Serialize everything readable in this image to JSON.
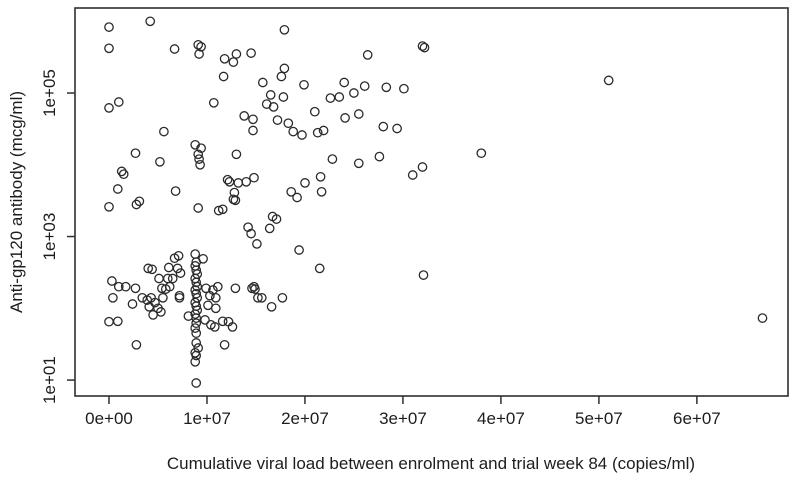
{
  "figure": {
    "background": "#ffffff",
    "text_color": "#1d1d1d",
    "box_color": "#2f2f2f"
  },
  "chart_data": {
    "type": "scatter",
    "xlabel": "Cumulative viral load between enrolment and trial week 84 (copies/ml)",
    "ylabel": "Anti-gp120 antibody (mcg/ml)",
    "x_ticks": [
      {
        "value": 0,
        "label": "0e+00"
      },
      {
        "value": 10000000,
        "label": "1e+07"
      },
      {
        "value": 20000000,
        "label": "2e+07"
      },
      {
        "value": 30000000,
        "label": "3e+07"
      },
      {
        "value": 40000000,
        "label": "4e+07"
      },
      {
        "value": 50000000,
        "label": "5e+07"
      },
      {
        "value": 60000000,
        "label": "6e+07"
      }
    ],
    "y_ticks": [
      {
        "value": 10,
        "label": "1e+01"
      },
      {
        "value": 1000,
        "label": "1e+03"
      },
      {
        "value": 100000,
        "label": "1e+05"
      }
    ],
    "xlim": [
      -3470000,
      69300000
    ],
    "ylim": [
      6,
      1530000
    ],
    "y_scale": "log10",
    "grid": false,
    "legend": null,
    "marker": {
      "shape": "open-circle",
      "color": "#2a2a2a",
      "radius": 4.2,
      "stroke_width": 1.3
    },
    "points": [
      [
        0,
        830000
      ],
      [
        4200000,
        1000000
      ],
      [
        0,
        420000
      ],
      [
        6700000,
        410000
      ],
      [
        9100000,
        470000
      ],
      [
        9400000,
        440000
      ],
      [
        9200000,
        350000
      ],
      [
        11800000,
        300000
      ],
      [
        12700000,
        270000
      ],
      [
        13000000,
        350000
      ],
      [
        14500000,
        360000
      ],
      [
        11700000,
        170000
      ],
      [
        17900000,
        760000
      ],
      [
        17900000,
        220000
      ],
      [
        17600000,
        170000
      ],
      [
        15700000,
        140000
      ],
      [
        19900000,
        130000
      ],
      [
        16500000,
        94000
      ],
      [
        16100000,
        70000
      ],
      [
        16800000,
        64000
      ],
      [
        17800000,
        88000
      ],
      [
        10700000,
        73000
      ],
      [
        0,
        62000
      ],
      [
        1000000,
        75000
      ],
      [
        13800000,
        48000
      ],
      [
        14700000,
        43000
      ],
      [
        14700000,
        30000
      ],
      [
        17200000,
        42000
      ],
      [
        18300000,
        38000
      ],
      [
        18800000,
        29000
      ],
      [
        5600000,
        29000
      ],
      [
        19700000,
        26000
      ],
      [
        21000000,
        55000
      ],
      [
        21300000,
        28000
      ],
      [
        21900000,
        30000
      ],
      [
        32000000,
        450000
      ],
      [
        32200000,
        430000
      ],
      [
        26400000,
        340000
      ],
      [
        24000000,
        140000
      ],
      [
        25000000,
        100000
      ],
      [
        26100000,
        125000
      ],
      [
        28300000,
        120000
      ],
      [
        30100000,
        115000
      ],
      [
        22600000,
        85000
      ],
      [
        23500000,
        88000
      ],
      [
        24100000,
        45000
      ],
      [
        25500000,
        51000
      ],
      [
        28000000,
        34000
      ],
      [
        29400000,
        32000
      ],
      [
        51000000,
        150000
      ],
      [
        2700000,
        14500
      ],
      [
        5200000,
        11000
      ],
      [
        8800000,
        19000
      ],
      [
        9400000,
        17000
      ],
      [
        9100000,
        14000
      ],
      [
        9200000,
        12000
      ],
      [
        9300000,
        10000
      ],
      [
        13000000,
        14000
      ],
      [
        1300000,
        8100
      ],
      [
        1500000,
        7400
      ],
      [
        900000,
        4600
      ],
      [
        6800000,
        4300
      ],
      [
        0,
        2600
      ],
      [
        2800000,
        2800
      ],
      [
        3100000,
        3100
      ],
      [
        12100000,
        6200
      ],
      [
        12300000,
        5800
      ],
      [
        13200000,
        5600
      ],
      [
        14000000,
        5800
      ],
      [
        14800000,
        6600
      ],
      [
        12800000,
        4100
      ],
      [
        12700000,
        3300
      ],
      [
        12900000,
        3200
      ],
      [
        9100000,
        2500
      ],
      [
        11200000,
        2300
      ],
      [
        11600000,
        2400
      ],
      [
        16700000,
        1900
      ],
      [
        17100000,
        1750
      ],
      [
        16400000,
        1300
      ],
      [
        14200000,
        1350
      ],
      [
        14500000,
        1100
      ],
      [
        15100000,
        790
      ],
      [
        19400000,
        650
      ],
      [
        18600000,
        4200
      ],
      [
        19200000,
        3500
      ],
      [
        20000000,
        5600
      ],
      [
        22800000,
        12000
      ],
      [
        25500000,
        10500
      ],
      [
        27600000,
        13000
      ],
      [
        21600000,
        6800
      ],
      [
        21700000,
        4200
      ],
      [
        31000000,
        7200
      ],
      [
        32000000,
        9300
      ],
      [
        38000000,
        14500
      ],
      [
        6700000,
        500
      ],
      [
        7100000,
        540
      ],
      [
        8800000,
        570
      ],
      [
        9600000,
        490
      ],
      [
        4000000,
        360
      ],
      [
        4400000,
        350
      ],
      [
        6100000,
        370
      ],
      [
        7000000,
        360
      ],
      [
        21500000,
        360
      ],
      [
        32100000,
        290
      ],
      [
        5100000,
        260
      ],
      [
        6000000,
        260
      ],
      [
        5400000,
        190
      ],
      [
        6200000,
        200
      ],
      [
        6500000,
        260
      ],
      [
        5800000,
        185
      ],
      [
        300000,
        240
      ],
      [
        1000000,
        200
      ],
      [
        1700000,
        200
      ],
      [
        400000,
        140
      ],
      [
        2700000,
        190
      ],
      [
        2400000,
        115
      ],
      [
        3400000,
        140
      ],
      [
        3900000,
        130
      ],
      [
        4300000,
        140
      ],
      [
        4700000,
        120
      ],
      [
        4100000,
        105
      ],
      [
        5000000,
        100
      ],
      [
        4500000,
        81
      ],
      [
        5300000,
        89
      ],
      [
        5500000,
        140
      ],
      [
        7200000,
        140
      ],
      [
        0,
        65
      ],
      [
        900000,
        66
      ],
      [
        2800000,
        31
      ],
      [
        12900000,
        190
      ],
      [
        14600000,
        190
      ],
      [
        14900000,
        185
      ],
      [
        14800000,
        200
      ],
      [
        15200000,
        140
      ],
      [
        15600000,
        140
      ],
      [
        16600000,
        105
      ],
      [
        17700000,
        140
      ],
      [
        12200000,
        65
      ],
      [
        11800000,
        31
      ],
      [
        66700000,
        73
      ],
      [
        8900000,
        440
      ],
      [
        8800000,
        390
      ],
      [
        8900000,
        340
      ],
      [
        9000000,
        300
      ],
      [
        8800000,
        260
      ],
      [
        8900000,
        230
      ],
      [
        9000000,
        200
      ],
      [
        8800000,
        180
      ],
      [
        8900000,
        160
      ],
      [
        9000000,
        140
      ],
      [
        8800000,
        120
      ],
      [
        8900000,
        107
      ],
      [
        9000000,
        94
      ],
      [
        8800000,
        83
      ],
      [
        8900000,
        73
      ],
      [
        8900000,
        62
      ],
      [
        8800000,
        53
      ],
      [
        8900000,
        45
      ],
      [
        9900000,
        190
      ],
      [
        10600000,
        180
      ],
      [
        10300000,
        150
      ],
      [
        10900000,
        140
      ],
      [
        10100000,
        110
      ],
      [
        10900000,
        100
      ],
      [
        9800000,
        69
      ],
      [
        10400000,
        59
      ],
      [
        11600000,
        66
      ],
      [
        7300000,
        310
      ],
      [
        7200000,
        150
      ],
      [
        8100000,
        78
      ],
      [
        8900000,
        33
      ],
      [
        9100000,
        28
      ],
      [
        8800000,
        24
      ],
      [
        8900000,
        22
      ],
      [
        8800000,
        18
      ],
      [
        8900000,
        9.1
      ],
      [
        10800000,
        55
      ],
      [
        11100000,
        200
      ],
      [
        12600000,
        55
      ]
    ]
  }
}
